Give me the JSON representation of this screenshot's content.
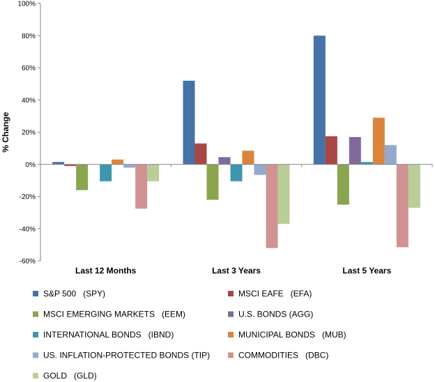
{
  "chart_data": {
    "type": "bar",
    "title": "",
    "xlabel": "",
    "ylabel": "% Change",
    "categories": [
      "Last 12 Months",
      "Last 3 Years",
      "Last 5 Years"
    ],
    "ylim": [
      -60,
      100
    ],
    "yticks": [
      -60,
      -40,
      -20,
      0,
      20,
      40,
      60,
      80,
      100
    ],
    "tick_suffix": "%",
    "grid": false,
    "legend_position": "bottom",
    "series": [
      {
        "name": "S&P 500   (SPY)",
        "color": "#4572A7",
        "values": [
          1.5,
          52,
          80
        ]
      },
      {
        "name": "MSCI EAFE   (EFA)",
        "color": "#AA4643",
        "values": [
          -1,
          13,
          17.5
        ]
      },
      {
        "name": "MSCI EMERGING MARKETS   (EEM)",
        "color": "#89A54E",
        "values": [
          -16,
          -22,
          -25
        ]
      },
      {
        "name": "U.S. BONDS (AGG)",
        "color": "#80699B",
        "values": [
          0,
          4.5,
          17
        ]
      },
      {
        "name": "INTERNATIONAL BONDS   (IBND)",
        "color": "#3D96AE",
        "values": [
          -10.5,
          -10.5,
          1.5
        ]
      },
      {
        "name": "MUNICIPAL BONDS   (MUB)",
        "color": "#DB843D",
        "values": [
          3,
          8.5,
          29
        ]
      },
      {
        "name": "US. INFLATION-PROTECTED BONDS (TIP)",
        "color": "#93A9CF",
        "values": [
          -2,
          -6.5,
          12
        ]
      },
      {
        "name": "COMMODITIES   (DBC)",
        "color": "#D19392",
        "values": [
          -27.5,
          -52,
          -51.5
        ]
      },
      {
        "name": "GOLD   (GLD)",
        "color": "#B9CD96",
        "values": [
          -10.5,
          -37,
          -27
        ]
      }
    ]
  }
}
